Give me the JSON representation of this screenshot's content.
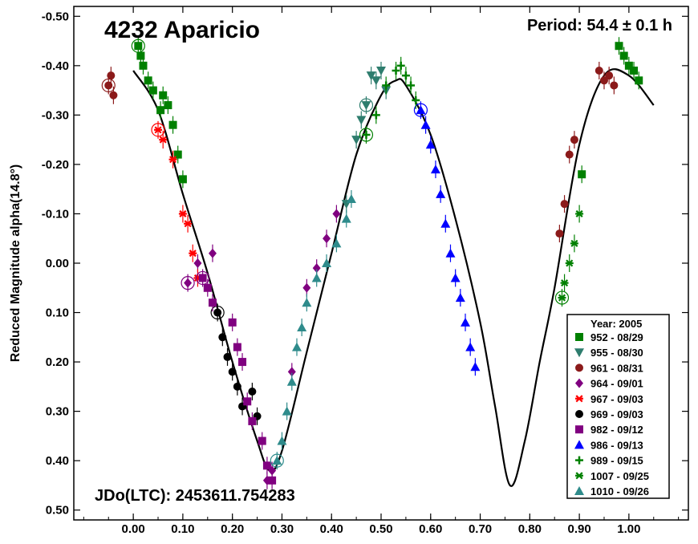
{
  "chart_data": {
    "type": "scatter",
    "title": "4232 Aparicio",
    "period_label": "Period: 54.4 ± 0.1 h",
    "jdo_label": "JDo(LTC): 2453611.754283",
    "ylabel": "Reduced Magnitude alpha(14.8°)",
    "xlabel": "",
    "xlim": [
      -0.12,
      1.12
    ],
    "ylim": [
      0.52,
      -0.52
    ],
    "y_inverted": true,
    "x_ticks": [
      "0.00",
      "0.10",
      "0.20",
      "0.30",
      "0.40",
      "0.50",
      "0.60",
      "0.70",
      "0.80",
      "0.90",
      "1.00"
    ],
    "x_tick_values": [
      0,
      0.1,
      0.2,
      0.3,
      0.4,
      0.5,
      0.6,
      0.7,
      0.8,
      0.9,
      1.0
    ],
    "y_ticks": [
      "-0.50",
      "-0.40",
      "-0.30",
      "-0.20",
      "-0.10",
      "0.00",
      "0.10",
      "0.20",
      "0.30",
      "0.40",
      "0.50"
    ],
    "y_tick_values": [
      -0.5,
      -0.4,
      -0.3,
      -0.2,
      -0.1,
      0,
      0.1,
      0.2,
      0.3,
      0.4,
      0.5
    ],
    "grid": false,
    "legend": {
      "placement": "bottom-right",
      "title": "Year: 2005",
      "entries": [
        {
          "label": "952 - 08/29",
          "color": "#008000",
          "marker": "square"
        },
        {
          "label": "955 - 08/30",
          "color": "#2E7D6E",
          "marker": "triangle-down"
        },
        {
          "label": "961 - 08/31",
          "color": "#8B1A1A",
          "marker": "circle"
        },
        {
          "label": "964 - 09/01",
          "color": "#800080",
          "marker": "diamond"
        },
        {
          "label": "967 - 09/03",
          "color": "#FF0000",
          "marker": "asterisk"
        },
        {
          "label": "969 - 09/03",
          "color": "#000000",
          "marker": "circle"
        },
        {
          "label": "982 - 09/12",
          "color": "#800080",
          "marker": "square"
        },
        {
          "label": "986 - 09/13",
          "color": "#0000FF",
          "marker": "triangle-up"
        },
        {
          "label": "989 - 09/15",
          "color": "#008000",
          "marker": "plus"
        },
        {
          "label": "1007 - 09/25",
          "color": "#008000",
          "marker": "asterisk"
        },
        {
          "label": "1010 - 09/26",
          "color": "#2E8B8B",
          "marker": "triangle-up"
        }
      ]
    },
    "fit_curve": {
      "x": [
        0.0,
        0.05,
        0.1,
        0.15,
        0.2,
        0.25,
        0.275,
        0.3,
        0.35,
        0.4,
        0.45,
        0.5,
        0.53,
        0.55,
        0.6,
        0.65,
        0.7,
        0.73,
        0.76,
        0.79,
        0.82,
        0.85,
        0.9,
        0.95,
        1.0,
        1.05
      ],
      "y": [
        -0.39,
        -0.31,
        -0.14,
        0.02,
        0.2,
        0.36,
        0.42,
        0.38,
        0.18,
        -0.02,
        -0.22,
        -0.34,
        -0.37,
        -0.36,
        -0.26,
        -0.09,
        0.12,
        0.29,
        0.45,
        0.36,
        0.2,
        0.05,
        -0.24,
        -0.38,
        -0.38,
        -0.32
      ]
    },
    "series": [
      {
        "name": "952 - 08/29",
        "points": [
          [
            0.01,
            -0.44
          ],
          [
            0.015,
            -0.42
          ],
          [
            0.02,
            -0.4
          ],
          [
            0.03,
            -0.37
          ],
          [
            0.04,
            -0.35
          ],
          [
            0.055,
            -0.31
          ],
          [
            0.06,
            -0.34
          ],
          [
            0.07,
            -0.32
          ],
          [
            0.08,
            -0.28
          ],
          [
            0.09,
            -0.22
          ],
          [
            0.1,
            -0.17
          ],
          [
            0.99,
            -0.42
          ],
          [
            1.0,
            -0.4
          ],
          [
            1.01,
            -0.39
          ],
          [
            0.98,
            -0.44
          ],
          [
            1.02,
            -0.37
          ],
          [
            0.905,
            -0.18
          ]
        ]
      },
      {
        "name": "955 - 08/30",
        "points": [
          [
            0.47,
            -0.32
          ],
          [
            0.48,
            -0.38
          ],
          [
            0.49,
            -0.37
          ],
          [
            0.46,
            -0.29
          ],
          [
            0.45,
            -0.25
          ],
          [
            0.5,
            -0.39
          ],
          [
            0.51,
            -0.35
          ],
          [
            0.43,
            -0.12
          ]
        ]
      },
      {
        "name": "961 - 08/31",
        "points": [
          [
            -0.05,
            -0.36
          ],
          [
            -0.04,
            -0.34
          ],
          [
            -0.045,
            -0.38
          ],
          [
            0.88,
            -0.22
          ],
          [
            0.87,
            -0.12
          ],
          [
            0.86,
            -0.06
          ],
          [
            0.89,
            -0.25
          ],
          [
            0.95,
            -0.37
          ],
          [
            0.96,
            -0.38
          ],
          [
            0.97,
            -0.36
          ],
          [
            0.94,
            -0.39
          ]
        ]
      },
      {
        "name": "964 - 09/01",
        "points": [
          [
            0.11,
            0.04
          ],
          [
            0.13,
            0.0
          ],
          [
            0.16,
            -0.02
          ],
          [
            0.27,
            0.44
          ],
          [
            0.28,
            0.42
          ],
          [
            0.32,
            0.22
          ],
          [
            0.35,
            0.05
          ],
          [
            0.37,
            0.01
          ],
          [
            0.39,
            -0.05
          ],
          [
            0.41,
            -0.1
          ]
        ]
      },
      {
        "name": "967 - 09/03",
        "points": [
          [
            0.05,
            -0.27
          ],
          [
            0.06,
            -0.25
          ],
          [
            0.08,
            -0.21
          ],
          [
            0.1,
            -0.1
          ],
          [
            0.11,
            -0.08
          ],
          [
            0.12,
            -0.02
          ],
          [
            0.13,
            0.03
          ]
        ]
      },
      {
        "name": "969 - 09/03",
        "points": [
          [
            0.17,
            0.1
          ],
          [
            0.18,
            0.15
          ],
          [
            0.19,
            0.19
          ],
          [
            0.2,
            0.22
          ],
          [
            0.21,
            0.25
          ],
          [
            0.22,
            0.29
          ],
          [
            0.24,
            0.26
          ],
          [
            0.25,
            0.31
          ]
        ]
      },
      {
        "name": "982 - 09/12",
        "points": [
          [
            0.14,
            0.03
          ],
          [
            0.15,
            0.05
          ],
          [
            0.16,
            0.08
          ],
          [
            0.2,
            0.12
          ],
          [
            0.21,
            0.17
          ],
          [
            0.22,
            0.2
          ],
          [
            0.23,
            0.28
          ],
          [
            0.24,
            0.32
          ],
          [
            0.26,
            0.36
          ],
          [
            0.27,
            0.41
          ],
          [
            0.28,
            0.44
          ]
        ]
      },
      {
        "name": "986 - 09/13",
        "points": [
          [
            0.58,
            -0.31
          ],
          [
            0.59,
            -0.28
          ],
          [
            0.6,
            -0.24
          ],
          [
            0.61,
            -0.19
          ],
          [
            0.62,
            -0.14
          ],
          [
            0.63,
            -0.08
          ],
          [
            0.64,
            -0.02
          ],
          [
            0.65,
            0.03
          ],
          [
            0.66,
            0.07
          ],
          [
            0.67,
            0.12
          ],
          [
            0.68,
            0.17
          ],
          [
            0.69,
            0.21
          ]
        ]
      },
      {
        "name": "989 - 09/15",
        "points": [
          [
            0.47,
            -0.26
          ],
          [
            0.49,
            -0.3
          ],
          [
            0.51,
            -0.36
          ],
          [
            0.53,
            -0.39
          ],
          [
            0.54,
            -0.4
          ],
          [
            0.55,
            -0.38
          ],
          [
            0.56,
            -0.36
          ],
          [
            0.57,
            -0.33
          ]
        ]
      },
      {
        "name": "1007 - 09/25",
        "points": [
          [
            0.865,
            0.07
          ],
          [
            0.87,
            0.04
          ],
          [
            0.88,
            0.0
          ],
          [
            0.89,
            -0.04
          ],
          [
            0.9,
            -0.1
          ]
        ]
      },
      {
        "name": "1010 - 09/26",
        "points": [
          [
            0.29,
            0.4
          ],
          [
            0.3,
            0.36
          ],
          [
            0.31,
            0.3
          ],
          [
            0.32,
            0.24
          ],
          [
            0.33,
            0.17
          ],
          [
            0.34,
            0.13
          ],
          [
            0.35,
            0.08
          ],
          [
            0.37,
            0.03
          ],
          [
            0.39,
            0.0
          ],
          [
            0.41,
            -0.04
          ],
          [
            0.43,
            -0.09
          ],
          [
            0.44,
            -0.13
          ]
        ]
      }
    ]
  }
}
